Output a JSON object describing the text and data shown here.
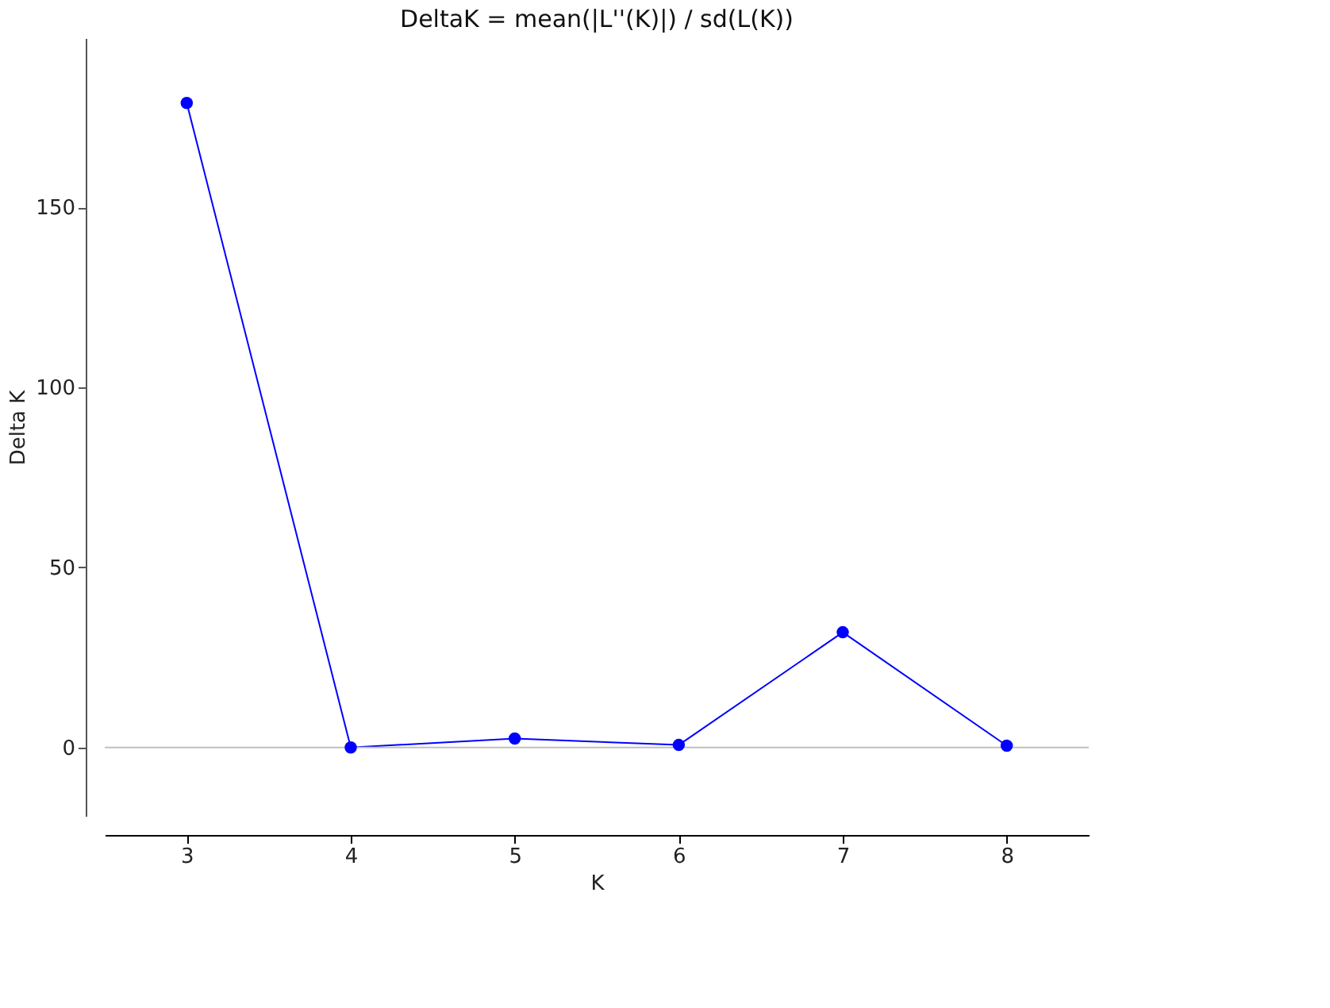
{
  "chart_data": {
    "type": "line",
    "title": "DeltaK = mean(|L''(K)|) / sd(L(K))",
    "xlabel": "K",
    "ylabel": "Delta K",
    "x": [
      3,
      4,
      5,
      6,
      7,
      8
    ],
    "series": [
      {
        "color": "#0000ff",
        "values": [
          179,
          0,
          2.5,
          0.7,
          32,
          0.5
        ]
      }
    ],
    "xlim": [
      2.5,
      8.5
    ],
    "xticks": [
      3,
      4,
      5,
      6,
      7,
      8
    ],
    "ylim": [
      -19,
      197
    ],
    "yticks": [
      0,
      50,
      100,
      150
    ],
    "ref_lines": [
      {
        "axis": "y",
        "value": 0,
        "color": "#c0c0c0"
      }
    ],
    "grid": false,
    "marker": "circle",
    "line_style": "solid"
  }
}
